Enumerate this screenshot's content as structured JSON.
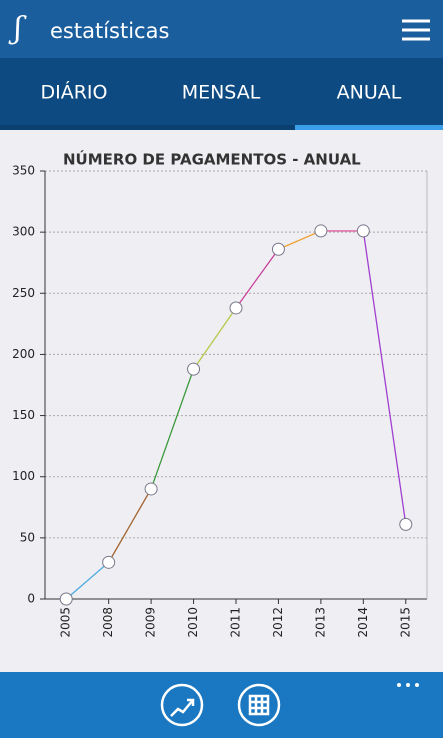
{
  "header": {
    "title": "estatísticas"
  },
  "tabs": [
    "DIÁRIO",
    "MENSAL",
    "ANUAL"
  ],
  "chart_data": {
    "type": "line",
    "title": "NÚMERO DE PAGAMENTOS - ANUAL",
    "categories": [
      "2005",
      "2008",
      "2009",
      "2010",
      "2011",
      "2012",
      "2013",
      "2014",
      "2015"
    ],
    "values": [
      0,
      30,
      90,
      188,
      238,
      286,
      301,
      301,
      61
    ],
    "segment_colors": [
      "#4aa8e0",
      "#a0622d",
      "#3a9a3a",
      "#b8c84a",
      "#c8409a",
      "#f0a030",
      "#e060a0",
      "#a040d0"
    ],
    "ylim": [
      0,
      350
    ],
    "yticks": [
      0,
      50,
      100,
      150,
      200,
      250,
      300,
      350
    ],
    "grid": true
  }
}
